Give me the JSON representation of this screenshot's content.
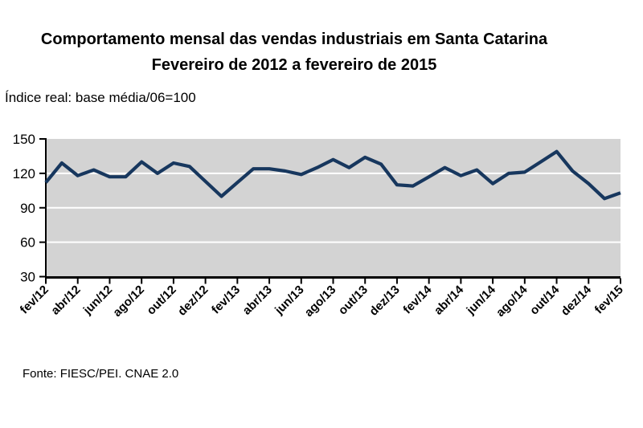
{
  "title": {
    "line1": "Comportamento mensal das vendas industriais em Santa Catarina",
    "line2": "Fevereiro de 2012 a fevereiro de 2015"
  },
  "subtitle": "Índice real: base média/06=100",
  "source": "Fonte: FIESC/PEI. CNAE 2.0",
  "chart_data": {
    "type": "line",
    "title": "Comportamento mensal das vendas industriais em Santa Catarina — Fevereiro de 2012 a fevereiro de 2015",
    "ylabel": "Índice real: base média/06=100",
    "x": [
      "fev/12",
      "mar/12",
      "abr/12",
      "mai/12",
      "jun/12",
      "jul/12",
      "ago/12",
      "set/12",
      "out/12",
      "nov/12",
      "dez/12",
      "jan/13",
      "fev/13",
      "mar/13",
      "abr/13",
      "mai/13",
      "jun/13",
      "jul/13",
      "ago/13",
      "set/13",
      "out/13",
      "nov/13",
      "dez/13",
      "jan/14",
      "fev/14",
      "mar/14",
      "abr/14",
      "mai/14",
      "jun/14",
      "jul/14",
      "ago/14",
      "set/14",
      "out/14",
      "nov/14",
      "dez/14",
      "jan/15",
      "fev/15"
    ],
    "values": [
      112,
      129,
      118,
      123,
      117,
      117,
      130,
      120,
      129,
      126,
      113,
      100,
      112,
      124,
      124,
      122,
      119,
      125,
      132,
      125,
      134,
      128,
      110,
      109,
      117,
      125,
      118,
      123,
      111,
      120,
      121,
      130,
      139,
      122,
      111,
      98,
      103
    ],
    "x_tick_labels": [
      "fev/12",
      "abr/12",
      "jun/12",
      "ago/12",
      "out/12",
      "dez/12",
      "fev/13",
      "abr/13",
      "jun/13",
      "ago/13",
      "out/13",
      "dez/13",
      "fev/14",
      "abr/14",
      "jun/14",
      "ago/14",
      "out/14",
      "dez/14",
      "fev/15"
    ],
    "x_tick_every": 2,
    "yticks": [
      30,
      60,
      90,
      120,
      150
    ],
    "ylim": [
      30,
      150
    ],
    "grid": "horizontal",
    "legend": "none",
    "colors": {
      "line": "#17375E",
      "plot_bg": "#D3D3D3",
      "gridline": "#FFFFFF",
      "axis": "#000000",
      "text": "#000000"
    }
  }
}
